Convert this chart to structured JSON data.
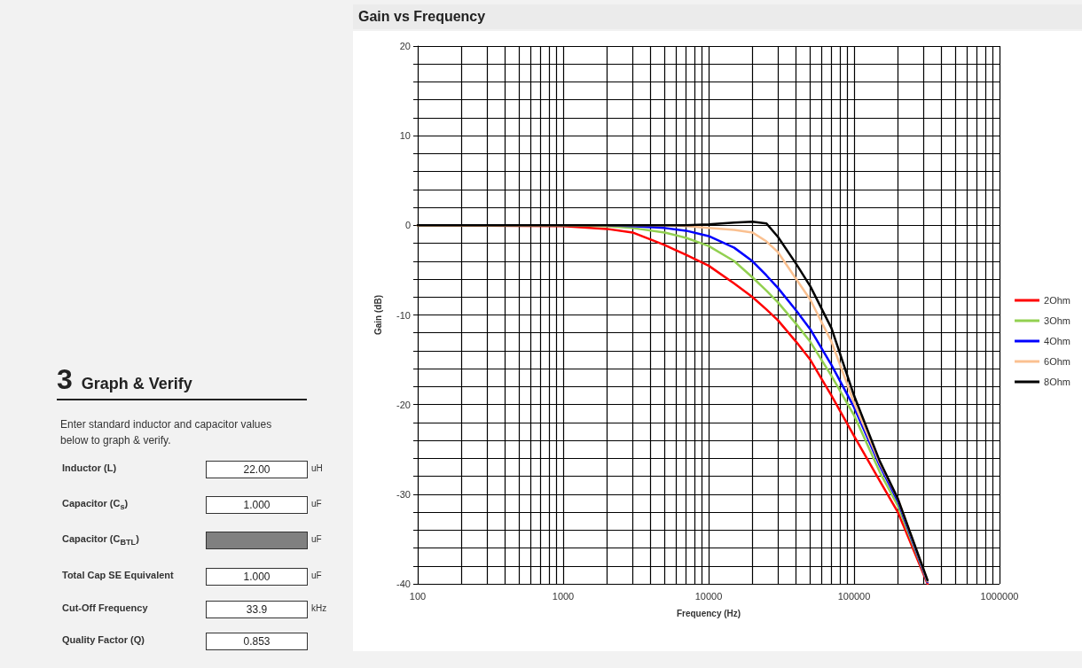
{
  "chart_data": [
    {
      "type": "line",
      "title": "Gain vs Frequency",
      "xlabel": "Frequency (Hz)",
      "ylabel": "Gain (dB)",
      "log": "x",
      "grid": true,
      "legend": "right",
      "marker": "none",
      "line_style": "solid",
      "xlim": [
        100,
        1000000
      ],
      "xticks": [
        100,
        {
          "value": 200,
          "label": null
        },
        {
          "value": 300,
          "label": null
        },
        {
          "value": 400,
          "label": null
        },
        {
          "value": 500,
          "label": null
        },
        {
          "value": 600,
          "label": null
        },
        {
          "value": 700,
          "label": null
        },
        {
          "value": 800,
          "label": null
        },
        {
          "value": 900,
          "label": null
        },
        1000,
        {
          "value": 2000,
          "label": null
        },
        {
          "value": 3000,
          "label": null
        },
        {
          "value": 4000,
          "label": null
        },
        {
          "value": 5000,
          "label": null
        },
        {
          "value": 6000,
          "label": null
        },
        {
          "value": 7000,
          "label": null
        },
        {
          "value": 8000,
          "label": null
        },
        {
          "value": 9000,
          "label": null
        },
        10000,
        {
          "value": 20000,
          "label": null
        },
        {
          "value": 30000,
          "label": null
        },
        {
          "value": 40000,
          "label": null
        },
        {
          "value": 50000,
          "label": null
        },
        {
          "value": 60000,
          "label": null
        },
        {
          "value": 70000,
          "label": null
        },
        {
          "value": 80000,
          "label": null
        },
        {
          "value": 90000,
          "label": null
        },
        100000,
        {
          "value": 200000,
          "label": null
        },
        {
          "value": 300000,
          "label": null
        },
        {
          "value": 400000,
          "label": null
        },
        {
          "value": 500000,
          "label": null
        },
        {
          "value": 600000,
          "label": null
        },
        {
          "value": 700000,
          "label": null
        },
        {
          "value": 800000,
          "label": null
        },
        {
          "value": 900000,
          "label": null
        },
        1000000
      ],
      "ylim": [
        -40,
        20
      ],
      "yticks": [
        -40,
        {
          "value": -38,
          "label": null
        },
        {
          "value": -36,
          "label": null
        },
        {
          "value": -34,
          "label": null
        },
        {
          "value": -32,
          "label": null
        },
        -30,
        {
          "value": -28,
          "label": null
        },
        {
          "value": -26,
          "label": null
        },
        {
          "value": -24,
          "label": null
        },
        {
          "value": -22,
          "label": null
        },
        -20,
        {
          "value": -18,
          "label": null
        },
        {
          "value": -16,
          "label": null
        },
        {
          "value": -14,
          "label": null
        },
        {
          "value": -12,
          "label": null
        },
        -10,
        {
          "value": -8,
          "label": null
        },
        {
          "value": -6,
          "label": null
        },
        {
          "value": -4,
          "label": null
        },
        {
          "value": -2,
          "label": null
        },
        0,
        {
          "value": 2,
          "label": null
        },
        {
          "value": 4,
          "label": null
        },
        {
          "value": 6,
          "label": null
        },
        {
          "value": 8,
          "label": null
        },
        10,
        {
          "value": 12,
          "label": null
        },
        {
          "value": 14,
          "label": null
        },
        {
          "value": 16,
          "label": null
        },
        {
          "value": 18,
          "label": null
        },
        20
      ],
      "x": [
        100,
        1000,
        2000,
        3000,
        5000,
        7000,
        10000,
        15000,
        20000,
        25000,
        30000,
        40000,
        50000,
        70000,
        100000,
        150000,
        200000,
        320000
      ],
      "series": [
        {
          "name": "2Ohm",
          "color": "#ff0000",
          "values": [
            0,
            -0.1,
            -0.4,
            -0.8,
            -2.2,
            -3.3,
            -4.5,
            -6.5,
            -8,
            -9.4,
            -10.6,
            -13,
            -15,
            -19,
            -23.5,
            -28.5,
            -32,
            -40
          ]
        },
        {
          "name": "3Ohm",
          "color": "#92d050",
          "values": [
            0,
            0,
            -0.1,
            -0.3,
            -0.8,
            -1.4,
            -2.3,
            -4,
            -5.8,
            -7.3,
            -8.6,
            -11,
            -13,
            -16.8,
            -21.2,
            -27.5,
            -31.3,
            -39.8
          ]
        },
        {
          "name": "4Ohm",
          "color": "#0000ff",
          "values": [
            null,
            null,
            0,
            -0.1,
            -0.3,
            -0.6,
            -1.2,
            -2.5,
            -4,
            -5.6,
            -7,
            -9.5,
            -11.6,
            -15.6,
            -20.3,
            -26.8,
            -30.8,
            -39.8
          ]
        },
        {
          "name": "6Ohm",
          "color": "#fac090",
          "values": [
            0,
            0,
            0,
            0,
            0,
            -0.1,
            -0.3,
            -0.5,
            -0.8,
            -1.8,
            -3,
            -6,
            -8.3,
            -13,
            -19.8,
            -26.5,
            -30.5,
            -39.7
          ]
        },
        {
          "name": "8Ohm",
          "color": "#000000",
          "values": [
            0,
            0,
            0,
            0,
            0,
            0,
            0.1,
            0.3,
            0.4,
            0.2,
            -1.3,
            -4.3,
            -6.8,
            -11.5,
            -19,
            -26.3,
            -30.5,
            -39.6
          ]
        }
      ]
    },
    {
      "type": "other",
      "title": "Graph & Verify",
      "subtitle": "Enter standard inductor and capacitor values below to graph & verify.",
      "annotations": [
        "3"
      ],
      "categories": [
        "Inductor (L)",
        "Capacitor (C$_{s}$)",
        "Capacitor (C$_{BTL}$)",
        "Total Cap SE Equivalent",
        "Cut-Off Frequency",
        "Quality Factor (Q)"
      ],
      "value_labels": [
        "22.00",
        "1.000",
        null,
        "1.000",
        "33.9",
        "0.853"
      ],
      "y2_categories": [
        "uH",
        "uF",
        "uF",
        "uF",
        "kHz",
        null
      ]
    }
  ]
}
